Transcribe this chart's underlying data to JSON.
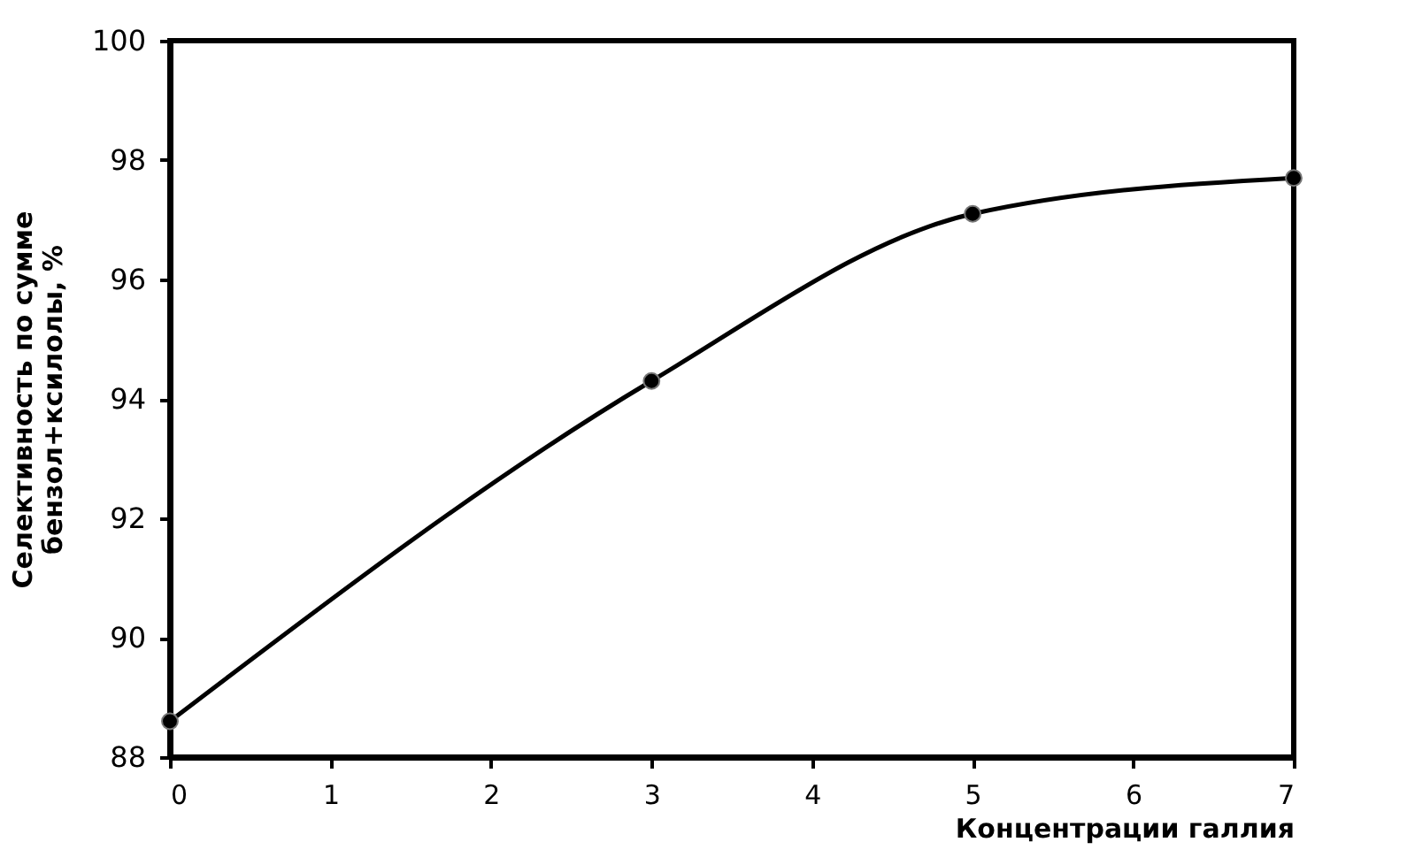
{
  "chart_data": {
    "type": "line",
    "xlabel": "Концентрации галлия",
    "ylabel": "Селективность по сумме\nбензол+ксилолы, %",
    "x": [
      0,
      3,
      5,
      7
    ],
    "series": [
      {
        "color": "#000000",
        "values": [
          88.6,
          94.3,
          97.1,
          97.7
        ]
      }
    ],
    "xlim": [
      0,
      7
    ],
    "xticks": [
      0,
      1,
      2,
      3,
      4,
      5,
      6,
      7
    ],
    "ylim": [
      88,
      100
    ],
    "yticks": [
      88,
      90,
      92,
      94,
      96,
      98,
      100
    ],
    "marker": "circle",
    "line_style": "solid",
    "grid": false,
    "legend": false
  }
}
